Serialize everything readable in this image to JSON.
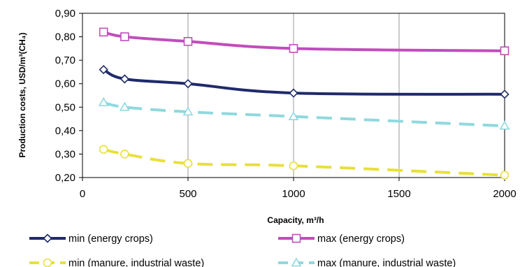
{
  "chart_data": {
    "type": "line",
    "xlabel": "Capacity, m³/h",
    "ylabel": "Production costs, USD/m³(CH₄)",
    "xlim": [
      0,
      2000
    ],
    "ylim": [
      0.2,
      0.9
    ],
    "x_ticks": [
      "0",
      "500",
      "1000",
      "1500",
      "2000"
    ],
    "y_ticks": [
      "0,20",
      "0,30",
      "0,40",
      "0,50",
      "0,60",
      "0,70",
      "0,80",
      "0,90"
    ],
    "grid": "vertical",
    "legend_position": "bottom",
    "series": [
      {
        "name": "min (energy crops)",
        "color": "#1f2a6b",
        "line_style": "solid",
        "marker": "diamond",
        "x": [
          100,
          200,
          500,
          1000,
          2000
        ],
        "y": [
          0.66,
          0.62,
          0.6,
          0.56,
          0.555
        ]
      },
      {
        "name": "max (energy crops)",
        "color": "#c04dbb",
        "line_style": "solid",
        "marker": "square",
        "x": [
          100,
          200,
          500,
          1000,
          2000
        ],
        "y": [
          0.82,
          0.8,
          0.78,
          0.75,
          0.74
        ]
      },
      {
        "name": "min (manure, industrial waste)",
        "color": "#e8e03a",
        "line_style": "dashed",
        "marker": "circle",
        "x": [
          100,
          200,
          500,
          1000,
          2000
        ],
        "y": [
          0.32,
          0.3,
          0.26,
          0.25,
          0.21
        ]
      },
      {
        "name": "max (manure, industrial waste)",
        "color": "#8fd9de",
        "line_style": "dashed",
        "marker": "triangle",
        "x": [
          100,
          200,
          500,
          1000,
          2000
        ],
        "y": [
          0.52,
          0.5,
          0.48,
          0.46,
          0.42
        ]
      }
    ]
  }
}
